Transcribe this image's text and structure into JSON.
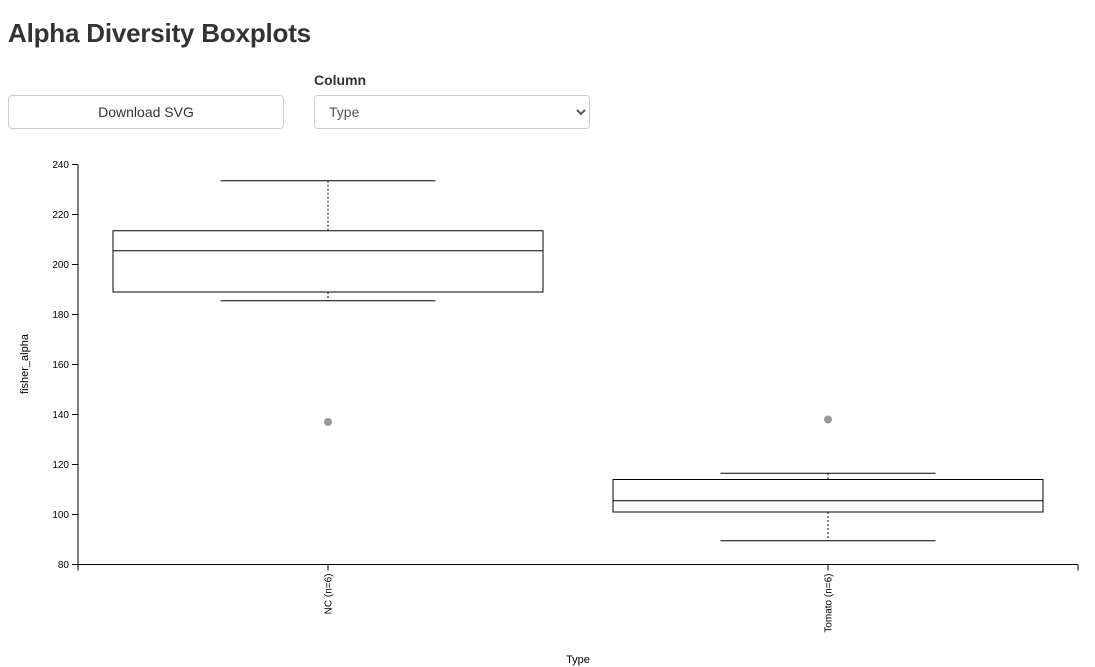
{
  "page": {
    "title": "Alpha Diversity Boxplots"
  },
  "controls": {
    "download_label": "Download SVG",
    "column_label": "Column",
    "column_selected": "Type"
  },
  "colors": {
    "box_stroke": "#000000",
    "outlier_fill": "#999999",
    "text": "#333333"
  },
  "chart_data": {
    "type": "boxplot",
    "title": "",
    "xlabel": "Type",
    "ylabel": "fisher_alpha",
    "ylim": [
      80,
      240
    ],
    "yticks": [
      80,
      100,
      120,
      140,
      160,
      180,
      200,
      220,
      240
    ],
    "grid": false,
    "groups": [
      {
        "label": "NC (n=6)",
        "whisker_low": 185.5,
        "q1": 189,
        "median": 205.5,
        "q3": 213.5,
        "whisker_high": 233.5,
        "outliers": [
          137
        ]
      },
      {
        "label": "Tomato (n=6)",
        "whisker_low": 89.5,
        "q1": 101,
        "median": 105.5,
        "q3": 114,
        "whisker_high": 116.5,
        "outliers": [
          138
        ]
      }
    ]
  }
}
